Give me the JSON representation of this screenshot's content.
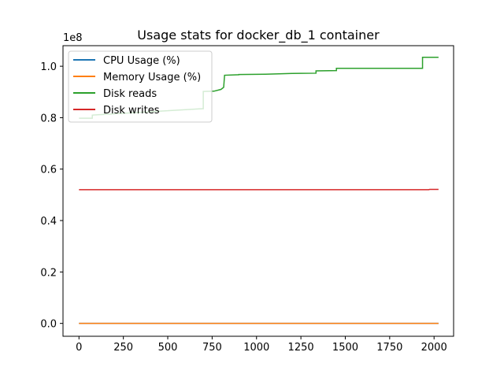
{
  "chart_data": {
    "type": "line",
    "title": "Usage stats for docker_db_1 container",
    "xlabel": "",
    "ylabel": "",
    "y_offset_label": "1e8",
    "xlim": [
      -90,
      2110
    ],
    "ylim": [
      -5000000,
      108000000
    ],
    "x_ticks": [
      0,
      250,
      500,
      750,
      1000,
      1250,
      1500,
      1750,
      2000
    ],
    "x_tick_labels": [
      "0",
      "250",
      "500",
      "750",
      "1000",
      "1250",
      "1500",
      "1750",
      "2000"
    ],
    "y_ticks": [
      0,
      20000000,
      40000000,
      60000000,
      80000000,
      100000000
    ],
    "y_tick_labels": [
      "0.0",
      "0.2",
      "0.4",
      "0.6",
      "0.8",
      "1.0"
    ],
    "grid": false,
    "legend_position": "upper-left",
    "series": [
      {
        "name": "CPU Usage (%)",
        "color": "#1f77b4",
        "x": [
          0,
          2025
        ],
        "y": [
          0,
          0
        ]
      },
      {
        "name": "Memory Usage (%)",
        "color": "#ff7f0e",
        "x": [
          0,
          2025
        ],
        "y": [
          0,
          0
        ]
      },
      {
        "name": "Disk reads",
        "color": "#2ca02c",
        "x": [
          0,
          75,
          75,
          700,
          700,
          760,
          800,
          815,
          820,
          820,
          900,
          900,
          1050,
          1200,
          1335,
          1335,
          1450,
          1450,
          1935,
          1935,
          2025
        ],
        "y": [
          79800000,
          79800000,
          81000000,
          83500000,
          90200000,
          90300000,
          91000000,
          91800000,
          96500000,
          96500000,
          96700000,
          96800000,
          96900000,
          97200000,
          97300000,
          98200000,
          98300000,
          99200000,
          99200000,
          103500000,
          103500000
        ]
      },
      {
        "name": "Disk writes",
        "color": "#d62728",
        "x": [
          0,
          1970,
          1975,
          2025
        ],
        "y": [
          52000000,
          52000000,
          52100000,
          52100000
        ]
      }
    ]
  }
}
